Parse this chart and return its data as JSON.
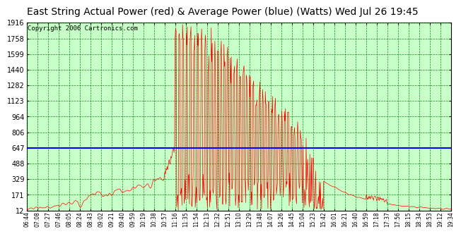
{
  "title": "East String Actual Power (red) & Average Power (blue) (Watts) Wed Jul 26 19:45",
  "copyright": "Copyright 2006 Cartronics.com",
  "y_ticks": [
    12.0,
    170.7,
    329.4,
    488.1,
    646.8,
    805.5,
    964.2,
    1122.9,
    1281.6,
    1440.3,
    1599.0,
    1757.7,
    1916.4
  ],
  "y_min": 12.0,
  "y_max": 1916.4,
  "average_line_y": 646.8,
  "background_color": "#c8ffc8",
  "title_fontsize": 10,
  "copyright_fontsize": 6.5,
  "x_labels": [
    "06:44",
    "07:08",
    "07:27",
    "07:46",
    "08:05",
    "08:24",
    "08:43",
    "09:02",
    "09:21",
    "09:40",
    "09:59",
    "10:19",
    "10:38",
    "10:57",
    "11:16",
    "11:35",
    "11:54",
    "12:13",
    "12:32",
    "12:51",
    "13:10",
    "13:29",
    "13:48",
    "14:07",
    "14:26",
    "14:45",
    "15:04",
    "15:23",
    "15:42",
    "16:01",
    "16:21",
    "16:40",
    "16:59",
    "17:18",
    "17:37",
    "17:56",
    "18:15",
    "18:34",
    "18:53",
    "19:12",
    "19:34"
  ]
}
